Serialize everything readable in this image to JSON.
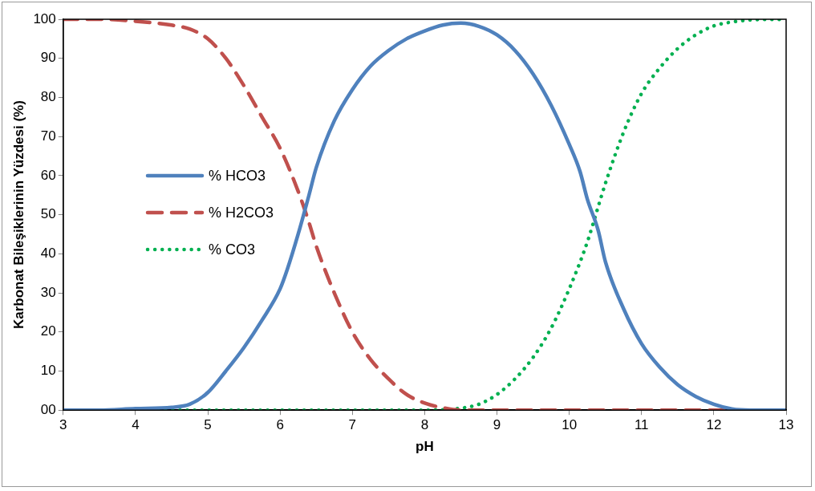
{
  "chart_data": {
    "type": "line",
    "xlabel": "pH",
    "ylabel": "Karbonat Bileşiklerinin Yüzdesi (%)",
    "xlim": [
      3,
      13
    ],
    "xticks": [
      3,
      4,
      5,
      6,
      7,
      8,
      9,
      10,
      11,
      12,
      13
    ],
    "ylim": [
      0,
      100
    ],
    "yticks": [
      {
        "value": 0,
        "label": "00"
      },
      10,
      20,
      30,
      40,
      50,
      60,
      70,
      80,
      90,
      100
    ],
    "grid": false,
    "legend": "left",
    "marker": "none",
    "series": [
      {
        "name": "% HCO3",
        "color": "#4f81bd",
        "line_style": "solid",
        "x": [
          3,
          3.5,
          4,
          4.5,
          4.75,
          5,
          5.25,
          5.5,
          5.75,
          6,
          6.1,
          6.25,
          6.4,
          6.5,
          6.75,
          7,
          7.25,
          7.5,
          7.75,
          8,
          8.25,
          8.5,
          8.75,
          9,
          9.25,
          9.5,
          9.75,
          10,
          10.15,
          10.25,
          10.4,
          10.5,
          10.75,
          11,
          11.25,
          11.5,
          11.75,
          12,
          12.25,
          12.5,
          13
        ],
        "values": [
          0,
          0,
          0.4,
          0.7,
          1.5,
          4.5,
          10,
          16,
          23,
          31,
          36,
          45,
          55,
          62,
          74,
          82,
          88,
          92,
          95,
          97,
          98.5,
          99,
          98.2,
          96,
          92,
          86,
          78,
          68,
          61,
          54,
          46,
          38,
          26,
          17,
          11,
          6.5,
          3.5,
          1.5,
          0.3,
          0,
          0
        ]
      },
      {
        "name": "% H2CO3",
        "color": "#c0504d",
        "line_style": "dashed",
        "x": [
          3,
          3.5,
          4,
          4.5,
          4.75,
          5,
          5.25,
          5.5,
          5.75,
          6,
          6.25,
          6.4,
          6.5,
          6.75,
          7,
          7.25,
          7.5,
          7.75,
          8,
          8.25,
          8.5,
          9,
          10,
          11,
          12,
          13
        ],
        "values": [
          100,
          100,
          99.5,
          98.5,
          97.5,
          95,
          90,
          83,
          75,
          67,
          56,
          48,
          42,
          30,
          20,
          13,
          8,
          4,
          1.8,
          0.6,
          0,
          0,
          0,
          0,
          0,
          0
        ]
      },
      {
        "name": "% CO3",
        "color": "#00b050",
        "line_style": "dotted",
        "x": [
          3,
          4,
          5,
          6,
          7,
          8,
          8.5,
          8.75,
          9,
          9.25,
          9.5,
          9.75,
          10,
          10.25,
          10.4,
          10.5,
          10.75,
          11,
          11.25,
          11.5,
          11.75,
          12,
          12.25,
          12.5,
          13
        ],
        "values": [
          0,
          0,
          0,
          0,
          0,
          0,
          0.5,
          1.5,
          4,
          8,
          13.5,
          21,
          31,
          43,
          52,
          58,
          71,
          81,
          87.5,
          92.5,
          96,
          98.3,
          99.3,
          99.8,
          100
        ]
      }
    ]
  }
}
